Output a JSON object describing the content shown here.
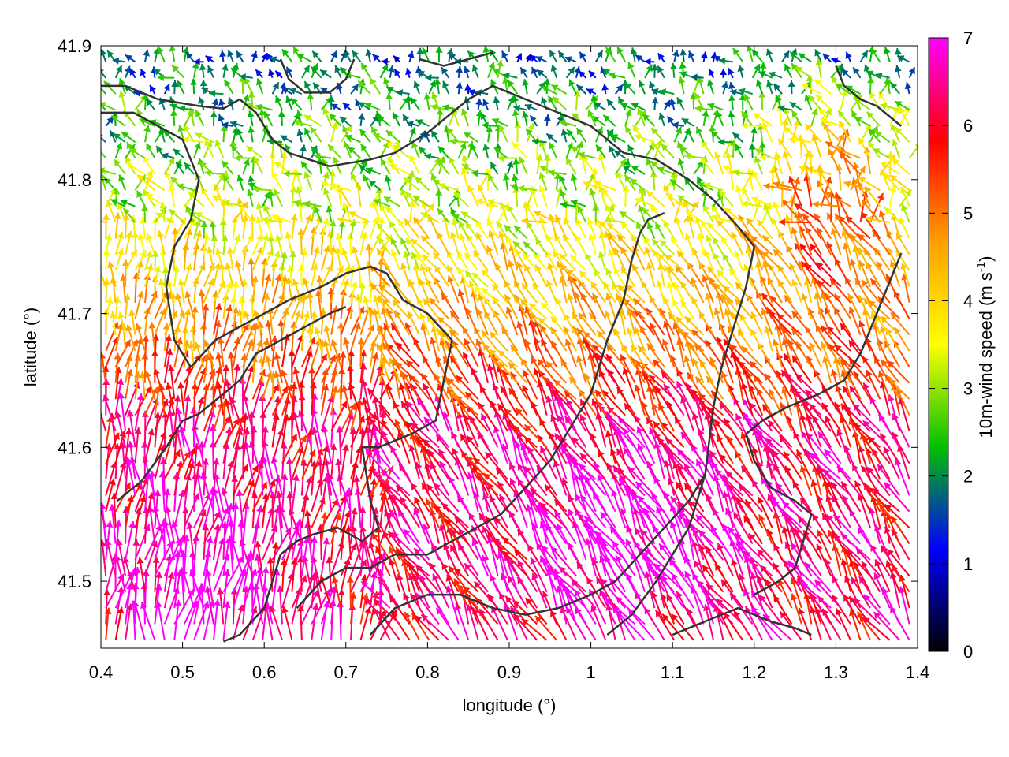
{
  "chart_data": {
    "type": "vector-field",
    "xlabel": "longitude (°)",
    "ylabel": "latitude (°)",
    "xlim": [
      0.4,
      1.4
    ],
    "ylim": [
      41.45,
      41.9
    ],
    "xticks": [
      "0.4",
      "0.5",
      "0.6",
      "0.7",
      "0.8",
      "0.9",
      "1",
      "1.1",
      "1.2",
      "1.3",
      "1.4"
    ],
    "yticks": [
      "41.5",
      "41.6",
      "41.7",
      "41.8",
      "41.9"
    ],
    "colorbar": {
      "label_main": "10m-wind speed (m s",
      "label_sup": "-1",
      "label_end": ")",
      "range": [
        0,
        7
      ],
      "ticks": [
        "0",
        "1",
        "2",
        "3",
        "4",
        "5",
        "6",
        "7"
      ],
      "stops": [
        "#000000",
        "#0000ff",
        "#00c000",
        "#ffff00",
        "#ffa000",
        "#ff0000",
        "#ff00ff"
      ]
    },
    "grid": false,
    "vector_grid_step_deg": 0.012,
    "wind_description": "Predominantly northward/north-westward flow; strongest (6-7 m/s) in the south-west and south-centre, weak and variable (0.5-2.5 m/s) in the northern part of the domain.",
    "contours": [
      [
        [
          0.4,
          41.87
        ],
        [
          0.43,
          41.87
        ],
        [
          0.47,
          41.86
        ],
        [
          0.52,
          41.855
        ],
        [
          0.55,
          41.853
        ],
        [
          0.57,
          41.86
        ],
        [
          0.59,
          41.85
        ],
        [
          0.61,
          41.83
        ],
        [
          0.63,
          41.82
        ],
        [
          0.68,
          41.81
        ],
        [
          0.73,
          41.815
        ],
        [
          0.76,
          41.82
        ],
        [
          0.8,
          41.835
        ],
        [
          0.85,
          41.86
        ],
        [
          0.88,
          41.87
        ],
        [
          0.92,
          41.86
        ],
        [
          0.96,
          41.85
        ],
        [
          1.0,
          41.84
        ],
        [
          1.04,
          41.82
        ],
        [
          1.08,
          41.815
        ],
        [
          1.12,
          41.8
        ],
        [
          1.15,
          41.785
        ],
        [
          1.18,
          41.765
        ],
        [
          1.2,
          41.75
        ],
        [
          1.19,
          41.72
        ],
        [
          1.17,
          41.68
        ],
        [
          1.16,
          41.66
        ],
        [
          1.15,
          41.63
        ],
        [
          1.14,
          41.58
        ],
        [
          1.12,
          41.54
        ],
        [
          1.08,
          41.5
        ],
        [
          1.05,
          41.475
        ],
        [
          1.02,
          41.46
        ]
      ],
      [
        [
          0.4,
          41.85
        ],
        [
          0.44,
          41.85
        ],
        [
          0.47,
          41.84
        ],
        [
          0.5,
          41.83
        ],
        [
          0.52,
          41.8
        ],
        [
          0.51,
          41.77
        ],
        [
          0.49,
          41.75
        ],
        [
          0.48,
          41.72
        ],
        [
          0.49,
          41.68
        ],
        [
          0.51,
          41.66
        ]
      ],
      [
        [
          0.51,
          41.66
        ],
        [
          0.54,
          41.68
        ],
        [
          0.57,
          41.69
        ],
        [
          0.6,
          41.7
        ],
        [
          0.63,
          41.71
        ],
        [
          0.67,
          41.72
        ],
        [
          0.7,
          41.73
        ],
        [
          0.73,
          41.735
        ],
        [
          0.75,
          41.73
        ],
        [
          0.77,
          41.71
        ],
        [
          0.8,
          41.7
        ],
        [
          0.83,
          41.68
        ],
        [
          0.82,
          41.65
        ],
        [
          0.81,
          41.62
        ],
        [
          0.78,
          41.61
        ],
        [
          0.74,
          41.6
        ],
        [
          0.72,
          41.6
        ],
        [
          0.73,
          41.56
        ],
        [
          0.74,
          41.54
        ],
        [
          0.72,
          41.53
        ],
        [
          0.69,
          41.54
        ],
        [
          0.66,
          41.535
        ],
        [
          0.64,
          41.53
        ],
        [
          0.62,
          41.52
        ],
        [
          0.6,
          41.48
        ],
        [
          0.57,
          41.46
        ],
        [
          0.55,
          41.455
        ]
      ],
      [
        [
          0.42,
          41.56
        ],
        [
          0.45,
          41.575
        ],
        [
          0.48,
          41.6
        ],
        [
          0.5,
          41.62
        ],
        [
          0.52,
          41.625
        ],
        [
          0.55,
          41.64
        ],
        [
          0.57,
          41.65
        ],
        [
          0.59,
          41.67
        ],
        [
          0.62,
          41.68
        ],
        [
          0.65,
          41.69
        ],
        [
          0.68,
          41.7
        ],
        [
          0.7,
          41.705
        ]
      ],
      [
        [
          0.64,
          41.48
        ],
        [
          0.67,
          41.5
        ],
        [
          0.7,
          41.51
        ],
        [
          0.73,
          41.51
        ],
        [
          0.76,
          41.52
        ],
        [
          0.8,
          41.52
        ],
        [
          0.83,
          41.53
        ],
        [
          0.86,
          41.54
        ],
        [
          0.89,
          41.55
        ],
        [
          0.92,
          41.57
        ],
        [
          0.95,
          41.59
        ],
        [
          0.98,
          41.62
        ],
        [
          1.0,
          41.64
        ],
        [
          1.02,
          41.68
        ],
        [
          1.04,
          41.71
        ],
        [
          1.05,
          41.74
        ],
        [
          1.06,
          41.76
        ],
        [
          1.07,
          41.77
        ],
        [
          1.09,
          41.775
        ]
      ],
      [
        [
          0.73,
          41.46
        ],
        [
          0.76,
          41.48
        ],
        [
          0.8,
          41.49
        ],
        [
          0.84,
          41.49
        ],
        [
          0.88,
          41.48
        ],
        [
          0.92,
          41.475
        ],
        [
          0.96,
          41.48
        ],
        [
          1.0,
          41.49
        ],
        [
          1.03,
          41.5
        ],
        [
          1.06,
          41.52
        ],
        [
          1.09,
          41.54
        ],
        [
          1.12,
          41.56
        ],
        [
          1.14,
          41.58
        ]
      ],
      [
        [
          1.2,
          41.49
        ],
        [
          1.23,
          41.5
        ],
        [
          1.25,
          41.51
        ],
        [
          1.26,
          41.53
        ],
        [
          1.27,
          41.55
        ],
        [
          1.25,
          41.56
        ],
        [
          1.22,
          41.57
        ],
        [
          1.2,
          41.59
        ],
        [
          1.19,
          41.61
        ],
        [
          1.21,
          41.62
        ],
        [
          1.24,
          41.63
        ],
        [
          1.28,
          41.64
        ],
        [
          1.31,
          41.65
        ],
        [
          1.33,
          41.67
        ],
        [
          1.35,
          41.7
        ],
        [
          1.37,
          41.73
        ],
        [
          1.38,
          41.745
        ]
      ],
      [
        [
          1.3,
          41.885
        ],
        [
          1.31,
          41.87
        ],
        [
          1.33,
          41.86
        ],
        [
          1.35,
          41.855
        ],
        [
          1.37,
          41.845
        ],
        [
          1.38,
          41.84
        ]
      ],
      [
        [
          1.1,
          41.46
        ],
        [
          1.14,
          41.47
        ],
        [
          1.18,
          41.48
        ],
        [
          1.22,
          41.47
        ],
        [
          1.25,
          41.465
        ],
        [
          1.27,
          41.46
        ]
      ],
      [
        [
          0.62,
          41.89
        ],
        [
          0.63,
          41.875
        ],
        [
          0.65,
          41.865
        ],
        [
          0.68,
          41.865
        ],
        [
          0.7,
          41.875
        ],
        [
          0.71,
          41.89
        ]
      ],
      [
        [
          0.79,
          41.89
        ],
        [
          0.82,
          41.885
        ],
        [
          0.85,
          41.89
        ],
        [
          0.88,
          41.895
        ]
      ]
    ]
  }
}
